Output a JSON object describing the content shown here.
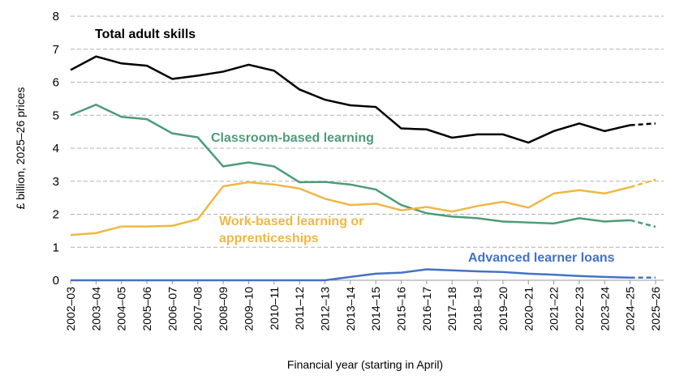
{
  "chart_data": {
    "type": "line",
    "y_label": "£ billion, 2025–26 prices",
    "x_label": "Financial year (starting in April)",
    "categories": [
      "2002–03",
      "2003–04",
      "2004–05",
      "2005–06",
      "2006–07",
      "2007–08",
      "2008–09",
      "2009–10",
      "2010–11",
      "2011–12",
      "2012–13",
      "2013–14",
      "2014–15",
      "2015–16",
      "2016–17",
      "2017–18",
      "2018–19",
      "2019–20",
      "2020–21",
      "2021–22",
      "2022–23",
      "2023–24",
      "2024–25",
      "2025–26"
    ],
    "series": [
      {
        "name": "Total adult skills",
        "color": "#000000",
        "values": [
          6.37,
          6.78,
          6.57,
          6.5,
          6.1,
          6.2,
          6.32,
          6.53,
          6.35,
          5.78,
          5.47,
          5.3,
          5.25,
          4.6,
          4.57,
          4.32,
          4.42,
          4.42,
          4.17,
          4.52,
          4.75,
          4.52,
          4.7,
          4.75
        ]
      },
      {
        "name": "Classroom-based learning",
        "color": "#4e9b78",
        "values": [
          5.0,
          5.32,
          4.95,
          4.88,
          4.45,
          4.33,
          3.45,
          3.57,
          3.45,
          2.97,
          2.98,
          2.9,
          2.75,
          2.28,
          2.03,
          1.93,
          1.88,
          1.78,
          1.75,
          1.72,
          1.88,
          1.78,
          1.82,
          1.62
        ]
      },
      {
        "name": "Work-based learning or apprenticeships",
        "color": "#eeb844",
        "values": [
          1.37,
          1.43,
          1.63,
          1.63,
          1.65,
          1.85,
          2.85,
          2.97,
          2.9,
          2.78,
          2.47,
          2.28,
          2.32,
          2.12,
          2.22,
          2.08,
          2.25,
          2.38,
          2.2,
          2.63,
          2.73,
          2.63,
          2.82,
          3.05
        ]
      },
      {
        "name": "Advanced learner loans",
        "color": "#4472c4",
        "values": [
          0,
          0,
          0,
          0,
          0,
          0,
          0,
          0,
          0,
          0,
          0,
          0.1,
          0.2,
          0.23,
          0.33,
          0.3,
          0.27,
          0.25,
          0.2,
          0.17,
          0.13,
          0.1,
          0.08,
          0.08
        ]
      }
    ],
    "ylim": [
      0,
      8
    ],
    "yticks": [
      0,
      1,
      2,
      3,
      4,
      5,
      6,
      7,
      8
    ],
    "grid": true,
    "dashed_last_segment": true
  }
}
